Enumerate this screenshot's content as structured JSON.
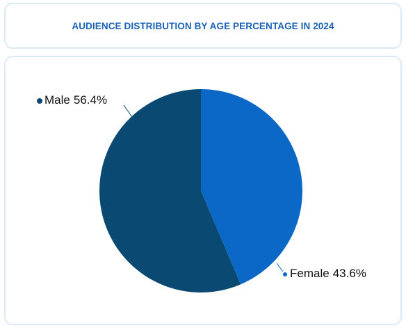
{
  "chart_data": {
    "type": "pie",
    "title": "AUDIENCE DISTRIBUTION BY AGE PERCENTAGE IN 2024",
    "categories": [
      "Female",
      "Male"
    ],
    "values": [
      43.6,
      56.4
    ],
    "value_labels": [
      "43.6%",
      "56.4%"
    ],
    "colors": [
      "#0c68c6",
      "#0a4a72"
    ]
  }
}
